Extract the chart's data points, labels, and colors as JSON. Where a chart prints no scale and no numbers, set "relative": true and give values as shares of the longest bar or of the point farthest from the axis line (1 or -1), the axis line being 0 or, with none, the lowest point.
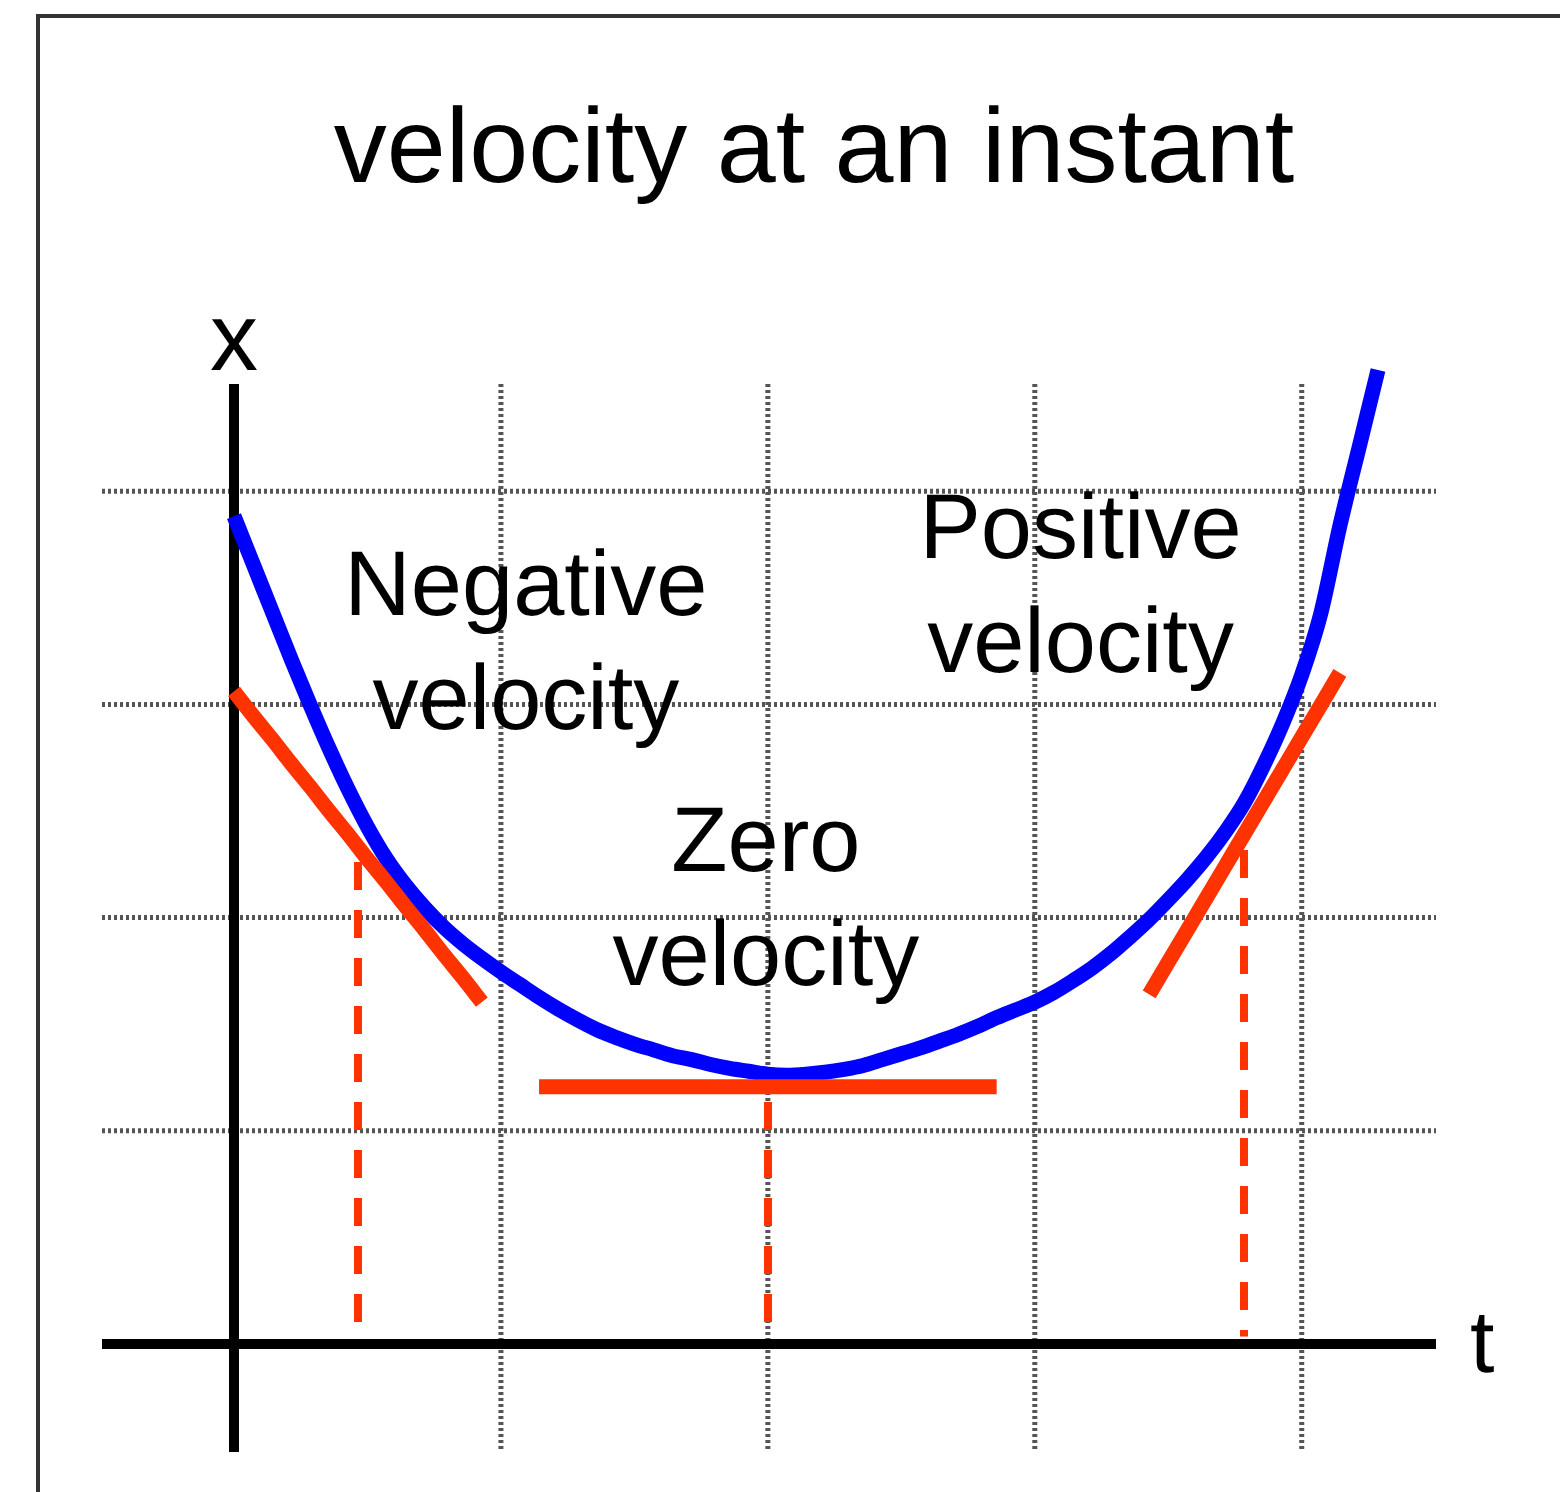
{
  "chart_data": {
    "type": "line",
    "title": "velocity at an instant",
    "xlabel": "t",
    "ylabel": "x",
    "relative": true,
    "grid": true,
    "categories": [
      null,
      null,
      null,
      null,
      null,
      null,
      null,
      null,
      null,
      null,
      null,
      null,
      null,
      null,
      null,
      null,
      null,
      null,
      null,
      null,
      null,
      null,
      null,
      null,
      null,
      null,
      null,
      null,
      null,
      null,
      null,
      null,
      null,
      null,
      null,
      null,
      null,
      null,
      null,
      null,
      null,
      null,
      null,
      null,
      null,
      null,
      null,
      null,
      null,
      null,
      null,
      null,
      null,
      null,
      null,
      null,
      null,
      null,
      null,
      null,
      null
    ],
    "series": [
      {
        "color": "#0000ff",
        "values": [
          0.85,
          0.801,
          0.752,
          0.703,
          0.656,
          0.611,
          0.569,
          0.531,
          0.498,
          0.471,
          0.448,
          0.428,
          0.411,
          0.396,
          0.382,
          0.369,
          0.356,
          0.344,
          0.333,
          0.323,
          0.315,
          0.308,
          0.302,
          0.296,
          0.292,
          0.287,
          0.283,
          0.28,
          0.277,
          0.276,
          0.277,
          0.279,
          0.282,
          0.286,
          0.292,
          0.298,
          0.304,
          0.311,
          0.318,
          0.326,
          0.335,
          0.343,
          0.351,
          0.361,
          0.373,
          0.386,
          0.401,
          0.418,
          0.436,
          0.456,
          0.477,
          0.5,
          0.526,
          0.556,
          0.594,
          0.637,
          0.687,
          0.75,
          0.84,
          0.92,
          1
        ]
      },
      {
        "name": "Negative velocity",
        "color": "#ff3300",
        "values": [
          0.67,
          0.645,
          0.621,
          0.596,
          0.572,
          0.547,
          0.523,
          0.498,
          0.474,
          0.449,
          0.425,
          0.4,
          0.376,
          0.351,
          null,
          null,
          null,
          null,
          null,
          null,
          null,
          null,
          null,
          null,
          null,
          null,
          null,
          null,
          null,
          null,
          null,
          null,
          null,
          null,
          null,
          null,
          null,
          null,
          null,
          null,
          null,
          null,
          null,
          null,
          null,
          null,
          null,
          null,
          null,
          null,
          null,
          null,
          null,
          null,
          null,
          null,
          null,
          null,
          null,
          null,
          null
        ]
      },
      {
        "name": "Zero velocity",
        "color": "#ff3300",
        "values": [
          null,
          null,
          null,
          null,
          null,
          null,
          null,
          null,
          null,
          null,
          null,
          null,
          null,
          null,
          null,
          null,
          0.264,
          0.264,
          0.264,
          0.264,
          0.264,
          0.264,
          0.264,
          0.264,
          0.264,
          0.264,
          0.264,
          0.264,
          0.264,
          0.264,
          0.264,
          0.264,
          0.264,
          0.264,
          0.264,
          0.264,
          0.264,
          0.264,
          0.264,
          0.264,
          0.264,
          null,
          null,
          null,
          null,
          null,
          null,
          null,
          null,
          null,
          null,
          null,
          null,
          null,
          null,
          null,
          null,
          null,
          null,
          null,
          null
        ]
      },
      {
        "name": "Positive velocity",
        "color": "#ff3300",
        "values": [
          null,
          null,
          null,
          null,
          null,
          null,
          null,
          null,
          null,
          null,
          null,
          null,
          null,
          null,
          null,
          null,
          null,
          null,
          null,
          null,
          null,
          null,
          null,
          null,
          null,
          null,
          null,
          null,
          null,
          null,
          null,
          null,
          null,
          null,
          null,
          null,
          null,
          null,
          null,
          null,
          null,
          null,
          null,
          null,
          null,
          null,
          null,
          null,
          0.359,
          0.392,
          0.425,
          0.458,
          0.491,
          0.524,
          0.557,
          0.59,
          0.623,
          0.656,
          0.689,
          null,
          null
        ]
      }
    ]
  }
}
